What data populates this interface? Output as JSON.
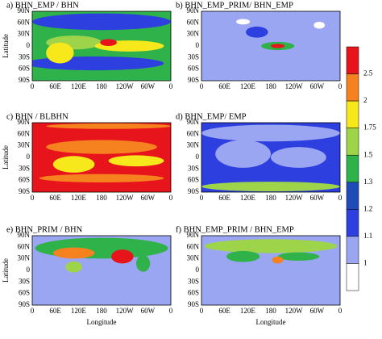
{
  "panels": [
    {
      "title": "a) BHN_EMP / BHN"
    },
    {
      "title": "b) BHN_EMP_PRIM/ BHN_EMP"
    },
    {
      "title": "c) BHN / BLBHN"
    },
    {
      "title": "d) BHN_EMP/ EMP"
    },
    {
      "title": "e) BHN_PRIM / BHN"
    },
    {
      "title": "f) BHN_EMP_PRIM / BHN_EMP"
    }
  ],
  "lat_labels": [
    "90N",
    "60N",
    "30N",
    "0",
    "30S",
    "60S",
    "90S"
  ],
  "lon_labels": [
    "0",
    "60E",
    "120E",
    "180",
    "120W",
    "60W",
    "0"
  ],
  "y_axis_label": "Latitude",
  "x_axis_label": "Longitude",
  "colorbar": {
    "colors": [
      "#e8141c",
      "#f5821f",
      "#f7e81c",
      "#9ed44a",
      "#2fb24a",
      "#1e4bb8",
      "#2e3fe0",
      "#9aa6f2",
      "#ffffff"
    ],
    "levels": [
      2.5,
      2,
      1.75,
      1.5,
      1.3,
      1.2,
      1.1,
      1
    ]
  }
}
